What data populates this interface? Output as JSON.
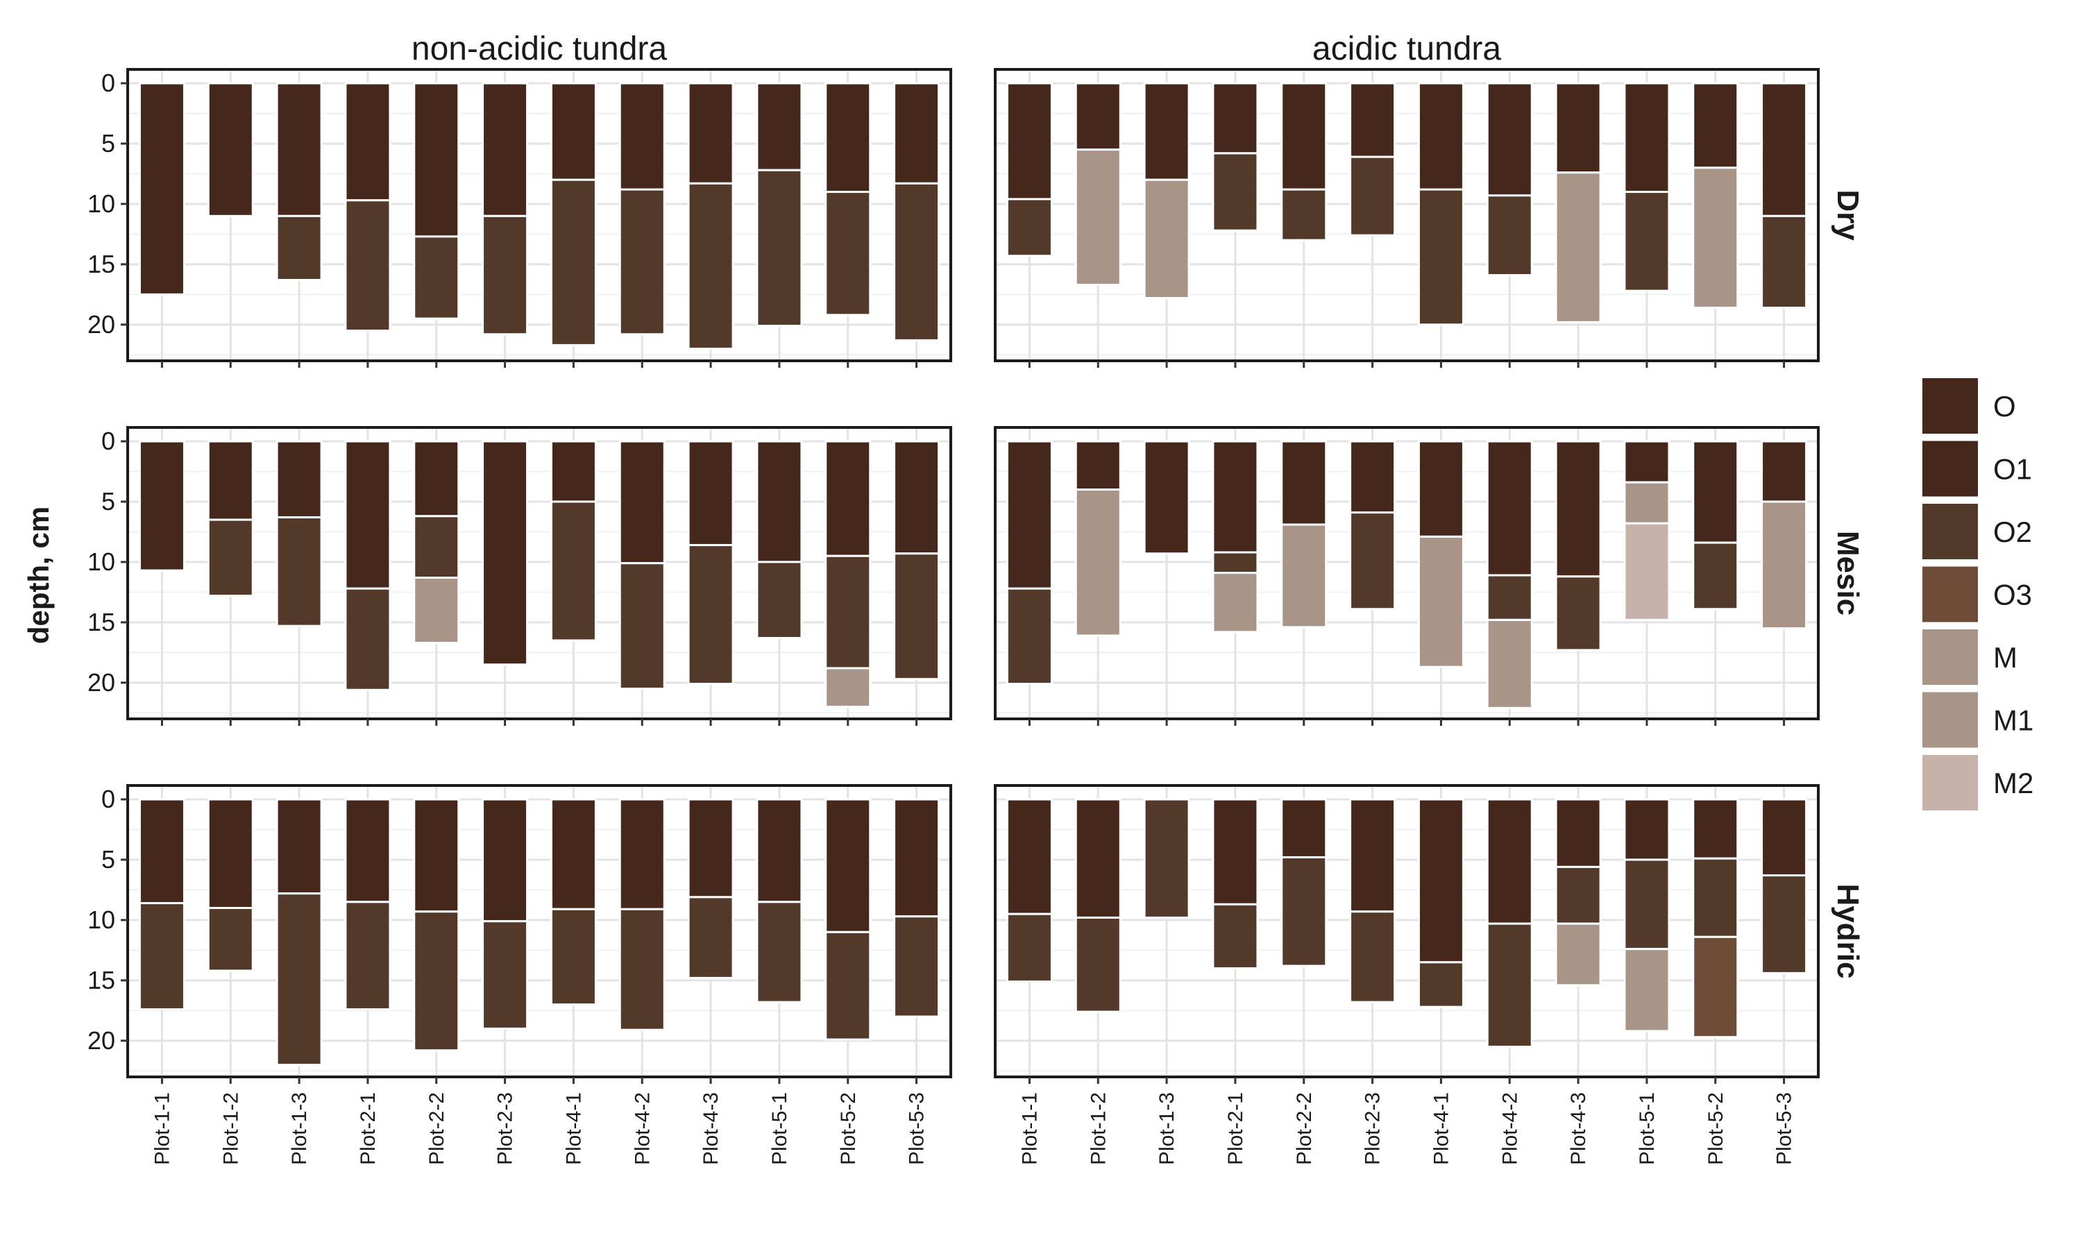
{
  "chart_data": {
    "type": "bar",
    "subtype": "stacked-horizon-depth",
    "ylabel": "depth, cm",
    "ylim": [
      0,
      23
    ],
    "yticks": [
      0,
      5,
      10,
      15,
      20
    ],
    "y_reversed": true,
    "grid": true,
    "legend_position": "right",
    "columns": [
      "non-acidic tundra",
      "acidic tundra"
    ],
    "rows": [
      "Dry",
      "Mesic",
      "Hydric"
    ],
    "categories": [
      "Plot-1-1",
      "Plot-1-2",
      "Plot-1-3",
      "Plot-2-1",
      "Plot-2-2",
      "Plot-2-3",
      "Plot-4-1",
      "Plot-4-2",
      "Plot-4-3",
      "Plot-5-1",
      "Plot-5-2",
      "Plot-5-3"
    ],
    "legend": [
      {
        "label": "O",
        "color": "#45271c"
      },
      {
        "label": "O1",
        "color": "#45271c"
      },
      {
        "label": "O2",
        "color": "#53392a"
      },
      {
        "label": "O3",
        "color": "#6e4c37"
      },
      {
        "label": "M",
        "color": "#a99488"
      },
      {
        "label": "M1",
        "color": "#a99488"
      },
      {
        "label": "M2",
        "color": "#c6b2a8"
      }
    ],
    "panels": [
      {
        "row": "Dry",
        "column": "non-acidic tundra",
        "bars": [
          [
            {
              "h": "O",
              "top": 0,
              "bottom": 17.5
            }
          ],
          [
            {
              "h": "O",
              "top": 0,
              "bottom": 11
            }
          ],
          [
            {
              "h": "O1",
              "top": 0,
              "bottom": 11
            },
            {
              "h": "O2",
              "top": 11,
              "bottom": 16.3
            }
          ],
          [
            {
              "h": "O1",
              "top": 0,
              "bottom": 9.7
            },
            {
              "h": "O2",
              "top": 9.7,
              "bottom": 20.5
            }
          ],
          [
            {
              "h": "O1",
              "top": 0,
              "bottom": 12.7
            },
            {
              "h": "O2",
              "top": 12.7,
              "bottom": 19.5
            }
          ],
          [
            {
              "h": "O1",
              "top": 0,
              "bottom": 11
            },
            {
              "h": "O2",
              "top": 11,
              "bottom": 20.8
            }
          ],
          [
            {
              "h": "O1",
              "top": 0,
              "bottom": 8
            },
            {
              "h": "O2",
              "top": 8,
              "bottom": 21.7
            }
          ],
          [
            {
              "h": "O1",
              "top": 0,
              "bottom": 8.8
            },
            {
              "h": "O2",
              "top": 8.8,
              "bottom": 20.8
            }
          ],
          [
            {
              "h": "O1",
              "top": 0,
              "bottom": 8.3
            },
            {
              "h": "O2",
              "top": 8.3,
              "bottom": 22
            }
          ],
          [
            {
              "h": "O1",
              "top": 0,
              "bottom": 7.2
            },
            {
              "h": "O2",
              "top": 7.2,
              "bottom": 20.1
            }
          ],
          [
            {
              "h": "O1",
              "top": 0,
              "bottom": 9
            },
            {
              "h": "O2",
              "top": 9,
              "bottom": 19.2
            }
          ],
          [
            {
              "h": "O1",
              "top": 0,
              "bottom": 8.3
            },
            {
              "h": "O2",
              "top": 8.3,
              "bottom": 21.3
            }
          ]
        ]
      },
      {
        "row": "Dry",
        "column": "acidic tundra",
        "bars": [
          [
            {
              "h": "O1",
              "top": 0,
              "bottom": 9.6
            },
            {
              "h": "O2",
              "top": 9.6,
              "bottom": 14.3
            }
          ],
          [
            {
              "h": "O",
              "top": 0,
              "bottom": 5.5
            },
            {
              "h": "M",
              "top": 5.5,
              "bottom": 16.7
            }
          ],
          [
            {
              "h": "O",
              "top": 0,
              "bottom": 8
            },
            {
              "h": "M",
              "top": 8,
              "bottom": 17.8
            }
          ],
          [
            {
              "h": "O1",
              "top": 0,
              "bottom": 5.8
            },
            {
              "h": "O2",
              "top": 5.8,
              "bottom": 12.2
            }
          ],
          [
            {
              "h": "O1",
              "top": 0,
              "bottom": 8.8
            },
            {
              "h": "O2",
              "top": 8.8,
              "bottom": 13
            }
          ],
          [
            {
              "h": "O1",
              "top": 0,
              "bottom": 6.1
            },
            {
              "h": "O2",
              "top": 6.1,
              "bottom": 12.6
            }
          ],
          [
            {
              "h": "O1",
              "top": 0,
              "bottom": 8.8
            },
            {
              "h": "O2",
              "top": 8.8,
              "bottom": 20
            }
          ],
          [
            {
              "h": "O1",
              "top": 0,
              "bottom": 9.3
            },
            {
              "h": "O2",
              "top": 9.3,
              "bottom": 15.9
            }
          ],
          [
            {
              "h": "O",
              "top": 0,
              "bottom": 7.4
            },
            {
              "h": "M",
              "top": 7.4,
              "bottom": 19.8
            }
          ],
          [
            {
              "h": "O1",
              "top": 0,
              "bottom": 9
            },
            {
              "h": "O2",
              "top": 9,
              "bottom": 17.2
            }
          ],
          [
            {
              "h": "O",
              "top": 0,
              "bottom": 7
            },
            {
              "h": "M",
              "top": 7,
              "bottom": 18.6
            }
          ],
          [
            {
              "h": "O1",
              "top": 0,
              "bottom": 11
            },
            {
              "h": "O2",
              "top": 11,
              "bottom": 18.6
            }
          ]
        ]
      },
      {
        "row": "Mesic",
        "column": "non-acidic tundra",
        "bars": [
          [
            {
              "h": "O",
              "top": 0,
              "bottom": 10.7
            }
          ],
          [
            {
              "h": "O1",
              "top": 0,
              "bottom": 6.5
            },
            {
              "h": "O2",
              "top": 6.5,
              "bottom": 12.8
            }
          ],
          [
            {
              "h": "O1",
              "top": 0,
              "bottom": 6.3
            },
            {
              "h": "O2",
              "top": 6.3,
              "bottom": 15.3
            }
          ],
          [
            {
              "h": "O1",
              "top": 0,
              "bottom": 12.2
            },
            {
              "h": "O2",
              "top": 12.2,
              "bottom": 20.6
            }
          ],
          [
            {
              "h": "O1",
              "top": 0,
              "bottom": 6.2
            },
            {
              "h": "O2",
              "top": 6.2,
              "bottom": 11.3
            },
            {
              "h": "M",
              "top": 11.3,
              "bottom": 16.7
            }
          ],
          [
            {
              "h": "O",
              "top": 0,
              "bottom": 18.5
            }
          ],
          [
            {
              "h": "O1",
              "top": 0,
              "bottom": 5
            },
            {
              "h": "O2",
              "top": 5,
              "bottom": 16.5
            }
          ],
          [
            {
              "h": "O1",
              "top": 0,
              "bottom": 10.1
            },
            {
              "h": "O2",
              "top": 10.1,
              "bottom": 20.5
            }
          ],
          [
            {
              "h": "O1",
              "top": 0,
              "bottom": 8.6
            },
            {
              "h": "O2",
              "top": 8.6,
              "bottom": 20.1
            }
          ],
          [
            {
              "h": "O1",
              "top": 0,
              "bottom": 10
            },
            {
              "h": "O2",
              "top": 10,
              "bottom": 16.3
            }
          ],
          [
            {
              "h": "O1",
              "top": 0,
              "bottom": 9.5
            },
            {
              "h": "O2",
              "top": 9.5,
              "bottom": 18.8
            },
            {
              "h": "M",
              "top": 18.8,
              "bottom": 22
            }
          ],
          [
            {
              "h": "O1",
              "top": 0,
              "bottom": 9.3
            },
            {
              "h": "O2",
              "top": 9.3,
              "bottom": 19.7
            }
          ]
        ]
      },
      {
        "row": "Mesic",
        "column": "acidic tundra",
        "bars": [
          [
            {
              "h": "O1",
              "top": 0,
              "bottom": 12.2
            },
            {
              "h": "O2",
              "top": 12.2,
              "bottom": 20.1
            }
          ],
          [
            {
              "h": "O",
              "top": 0,
              "bottom": 4
            },
            {
              "h": "M",
              "top": 4,
              "bottom": 16.1
            }
          ],
          [
            {
              "h": "O",
              "top": 0,
              "bottom": 9.3
            }
          ],
          [
            {
              "h": "O1",
              "top": 0,
              "bottom": 9.2
            },
            {
              "h": "O2",
              "top": 9.2,
              "bottom": 10.9
            },
            {
              "h": "M",
              "top": 10.9,
              "bottom": 15.8
            }
          ],
          [
            {
              "h": "O",
              "top": 0,
              "bottom": 6.9
            },
            {
              "h": "M",
              "top": 6.9,
              "bottom": 15.4
            }
          ],
          [
            {
              "h": "O1",
              "top": 0,
              "bottom": 5.9
            },
            {
              "h": "O2",
              "top": 5.9,
              "bottom": 13.9
            }
          ],
          [
            {
              "h": "O",
              "top": 0,
              "bottom": 7.9
            },
            {
              "h": "M",
              "top": 7.9,
              "bottom": 18.7
            }
          ],
          [
            {
              "h": "O1",
              "top": 0,
              "bottom": 11.1
            },
            {
              "h": "O2",
              "top": 11.1,
              "bottom": 14.8
            },
            {
              "h": "M",
              "top": 14.8,
              "bottom": 22.1
            }
          ],
          [
            {
              "h": "O1",
              "top": 0,
              "bottom": 11.2
            },
            {
              "h": "O2",
              "top": 11.2,
              "bottom": 17.3
            }
          ],
          [
            {
              "h": "O",
              "top": 0,
              "bottom": 3.4
            },
            {
              "h": "M1",
              "top": 3.4,
              "bottom": 6.8
            },
            {
              "h": "M2",
              "top": 6.8,
              "bottom": 14.8
            }
          ],
          [
            {
              "h": "O1",
              "top": 0,
              "bottom": 8.4
            },
            {
              "h": "O2",
              "top": 8.4,
              "bottom": 13.9
            }
          ],
          [
            {
              "h": "O",
              "top": 0,
              "bottom": 5
            },
            {
              "h": "M",
              "top": 5,
              "bottom": 15.5
            }
          ]
        ]
      },
      {
        "row": "Hydric",
        "column": "non-acidic tundra",
        "bars": [
          [
            {
              "h": "O1",
              "top": 0,
              "bottom": 8.6
            },
            {
              "h": "O2",
              "top": 8.6,
              "bottom": 17.4
            }
          ],
          [
            {
              "h": "O1",
              "top": 0,
              "bottom": 9
            },
            {
              "h": "O2",
              "top": 9,
              "bottom": 14.2
            }
          ],
          [
            {
              "h": "O1",
              "top": 0,
              "bottom": 7.8
            },
            {
              "h": "O2",
              "top": 7.8,
              "bottom": 22
            }
          ],
          [
            {
              "h": "O1",
              "top": 0,
              "bottom": 8.5
            },
            {
              "h": "O2",
              "top": 8.5,
              "bottom": 17.4
            }
          ],
          [
            {
              "h": "O1",
              "top": 0,
              "bottom": 9.3
            },
            {
              "h": "O2",
              "top": 9.3,
              "bottom": 20.8
            }
          ],
          [
            {
              "h": "O1",
              "top": 0,
              "bottom": 10.1
            },
            {
              "h": "O2",
              "top": 10.1,
              "bottom": 19
            }
          ],
          [
            {
              "h": "O1",
              "top": 0,
              "bottom": 9.1
            },
            {
              "h": "O2",
              "top": 9.1,
              "bottom": 17
            }
          ],
          [
            {
              "h": "O1",
              "top": 0,
              "bottom": 9.1
            },
            {
              "h": "O2",
              "top": 9.1,
              "bottom": 19.1
            }
          ],
          [
            {
              "h": "O1",
              "top": 0,
              "bottom": 8.1
            },
            {
              "h": "O2",
              "top": 8.1,
              "bottom": 14.8
            }
          ],
          [
            {
              "h": "O1",
              "top": 0,
              "bottom": 8.5
            },
            {
              "h": "O2",
              "top": 8.5,
              "bottom": 16.8
            }
          ],
          [
            {
              "h": "O1",
              "top": 0,
              "bottom": 11
            },
            {
              "h": "O2",
              "top": 11,
              "bottom": 19.9
            }
          ],
          [
            {
              "h": "O1",
              "top": 0,
              "bottom": 9.7
            },
            {
              "h": "O2",
              "top": 9.7,
              "bottom": 18
            }
          ]
        ]
      },
      {
        "row": "Hydric",
        "column": "acidic tundra",
        "bars": [
          [
            {
              "h": "O1",
              "top": 0,
              "bottom": 9.5
            },
            {
              "h": "O2",
              "top": 9.5,
              "bottom": 15.1
            }
          ],
          [
            {
              "h": "O1",
              "top": 0,
              "bottom": 9.8
            },
            {
              "h": "O2",
              "top": 9.8,
              "bottom": 17.6
            }
          ],
          [
            {
              "h": "O2",
              "top": 0,
              "bottom": 9.8
            }
          ],
          [
            {
              "h": "O1",
              "top": 0,
              "bottom": 8.7
            },
            {
              "h": "O2",
              "top": 8.7,
              "bottom": 14
            }
          ],
          [
            {
              "h": "O1",
              "top": 0,
              "bottom": 4.8
            },
            {
              "h": "O2",
              "top": 4.8,
              "bottom": 13.8
            }
          ],
          [
            {
              "h": "O1",
              "top": 0,
              "bottom": 9.3
            },
            {
              "h": "O2",
              "top": 9.3,
              "bottom": 16.8
            }
          ],
          [
            {
              "h": "O1",
              "top": 0,
              "bottom": 13.5
            },
            {
              "h": "O2",
              "top": 13.5,
              "bottom": 17.2
            }
          ],
          [
            {
              "h": "O1",
              "top": 0,
              "bottom": 10.3
            },
            {
              "h": "O2",
              "top": 10.3,
              "bottom": 20.5
            }
          ],
          [
            {
              "h": "O1",
              "top": 0,
              "bottom": 5.6
            },
            {
              "h": "O2",
              "top": 5.6,
              "bottom": 10.3
            },
            {
              "h": "M",
              "top": 10.3,
              "bottom": 15.4
            }
          ],
          [
            {
              "h": "O1",
              "top": 0,
              "bottom": 5
            },
            {
              "h": "O2",
              "top": 5,
              "bottom": 12.4
            },
            {
              "h": "M",
              "top": 12.4,
              "bottom": 19.2
            }
          ],
          [
            {
              "h": "O1",
              "top": 0,
              "bottom": 4.9
            },
            {
              "h": "O2",
              "top": 4.9,
              "bottom": 11.4
            },
            {
              "h": "O3",
              "top": 11.4,
              "bottom": 19.7
            }
          ],
          [
            {
              "h": "O1",
              "top": 0,
              "bottom": 6.3
            },
            {
              "h": "O2",
              "top": 6.3,
              "bottom": 14.4
            }
          ]
        ]
      }
    ]
  }
}
